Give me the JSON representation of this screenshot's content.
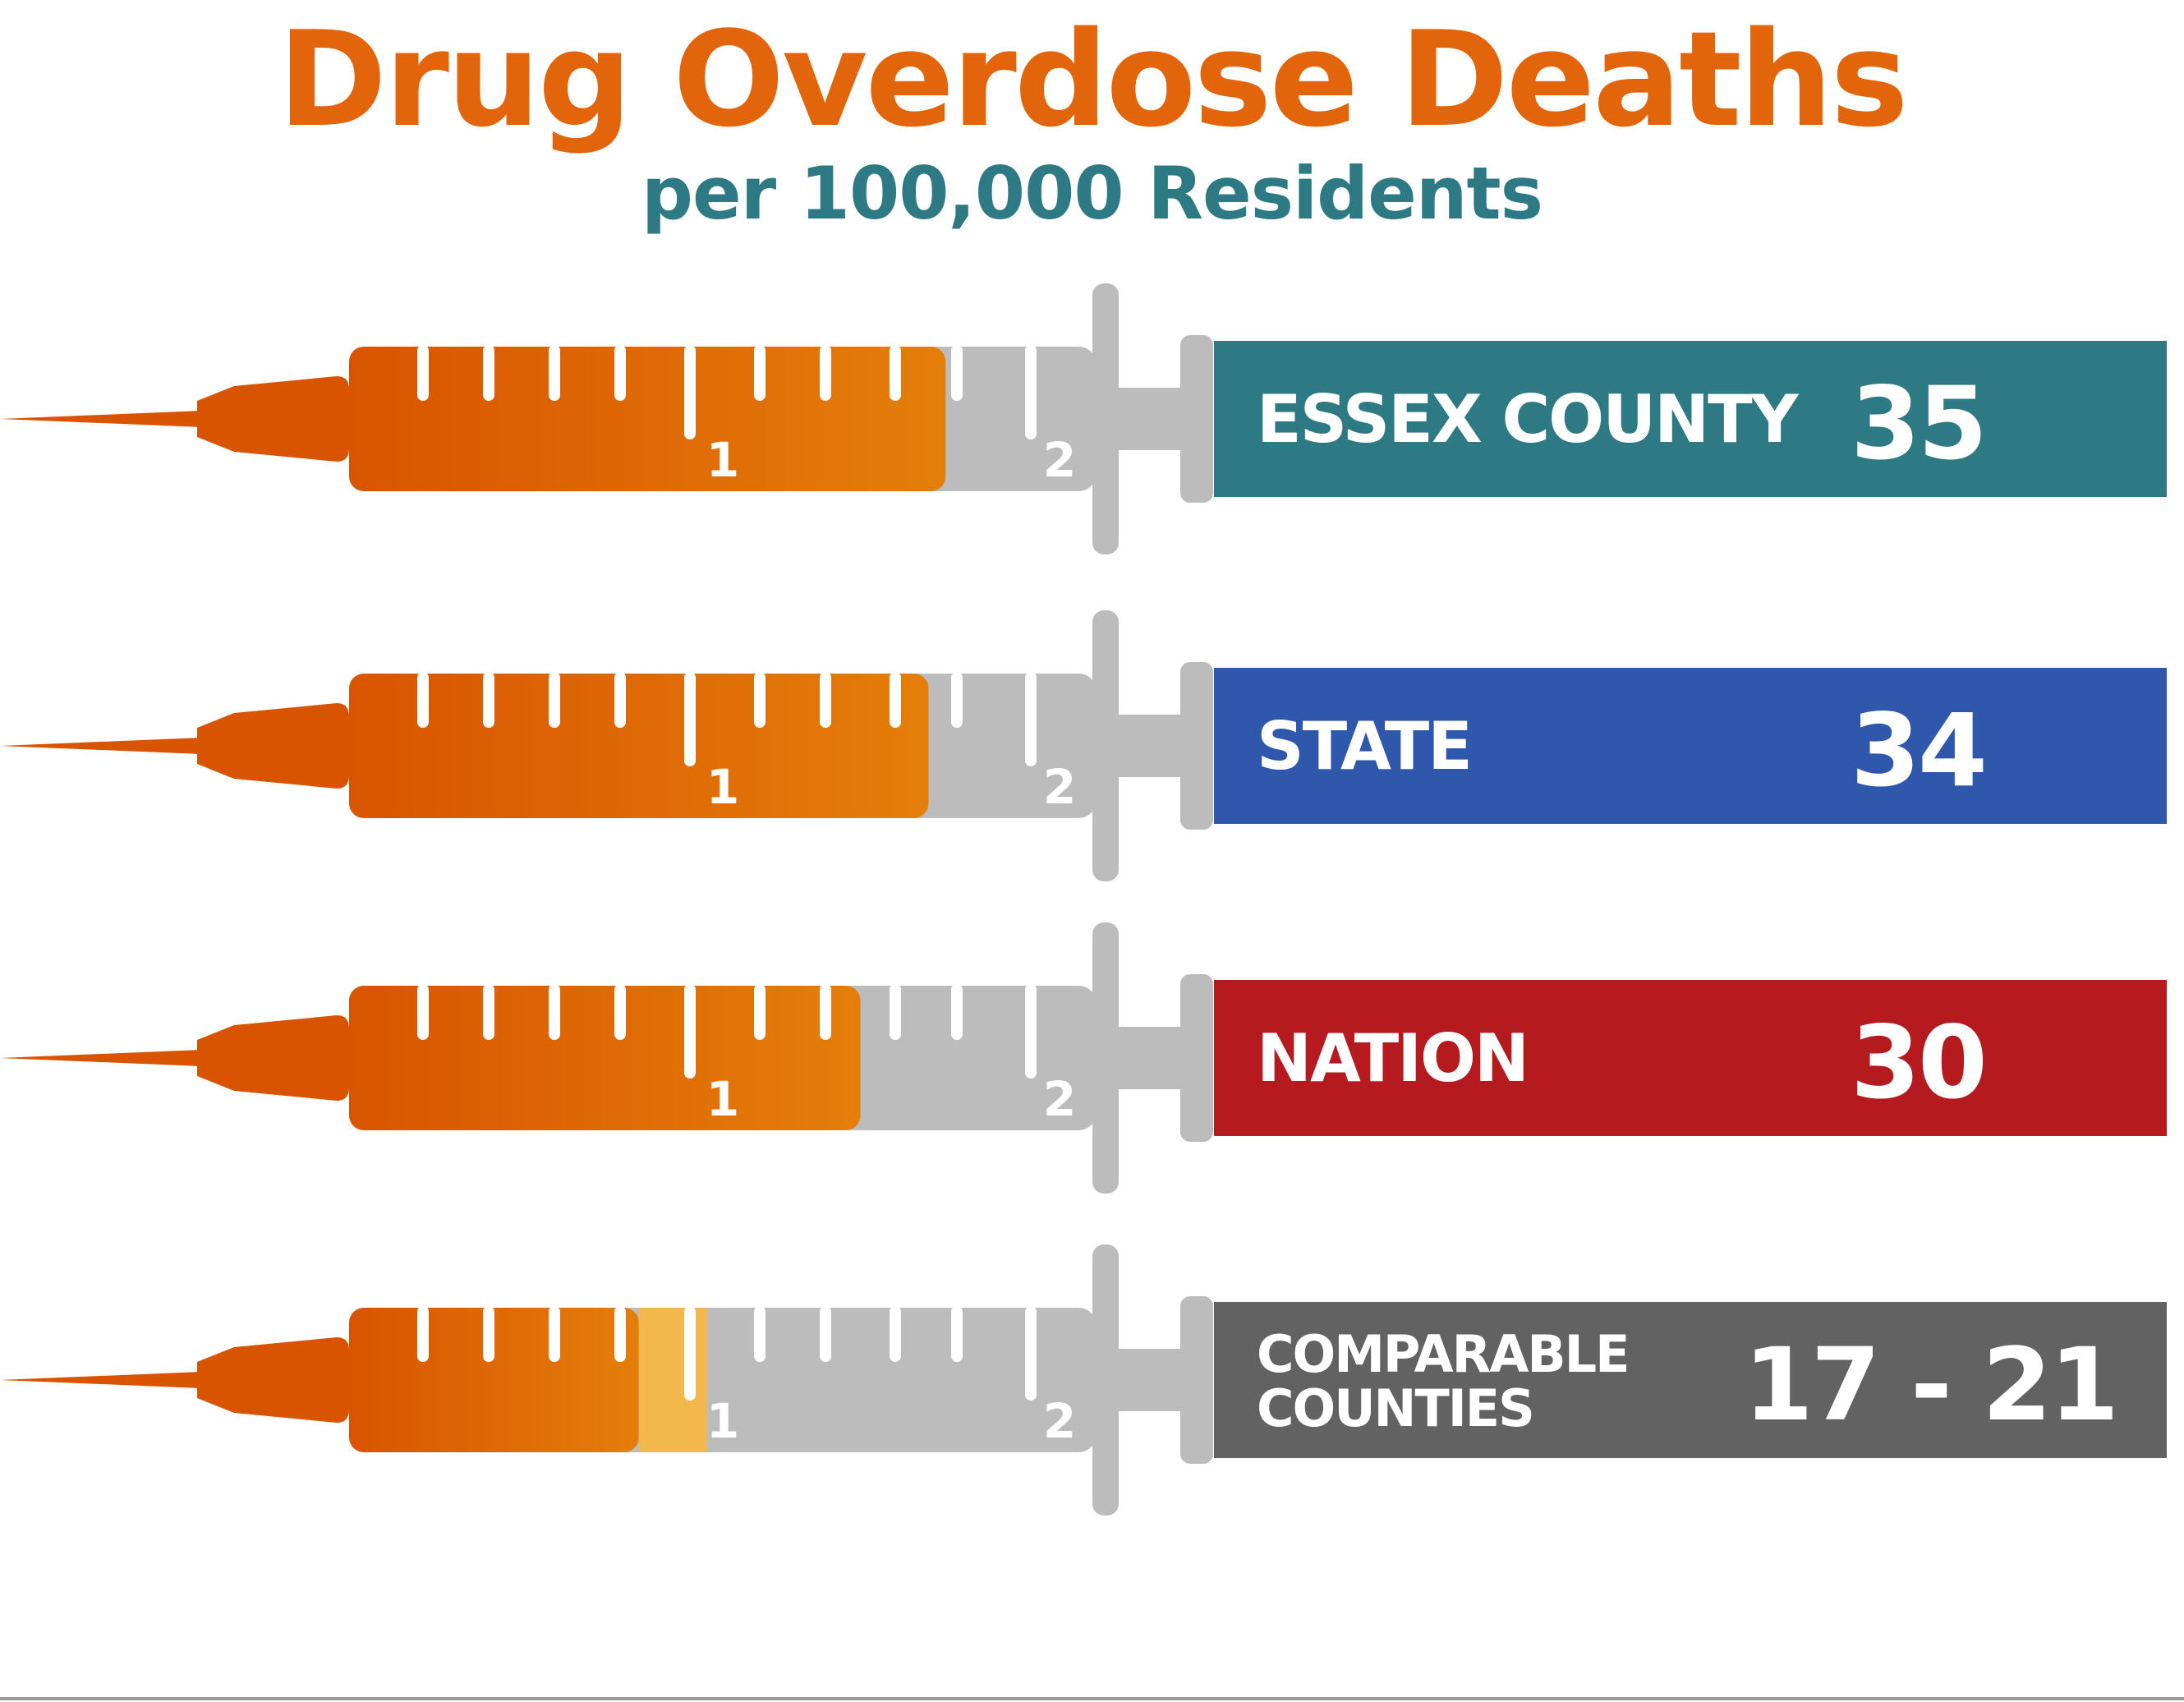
{
  "chart_data": {
    "type": "bar",
    "title": "Drug Overdose Deaths",
    "subtitle": "per 100,000 Residents",
    "scale_labels": [
      "1",
      "2"
    ],
    "fill_color": "#e2650c",
    "range_color": "#f2b84b",
    "barrel_color": "#bcbcbc",
    "series": [
      {
        "name": "ESSEX COUNTY",
        "label_lines": [
          "ESSEX COUNTY"
        ],
        "display": "35",
        "values": [
          35
        ],
        "color": "#2e7a84"
      },
      {
        "name": "STATE",
        "label_lines": [
          "STATE"
        ],
        "display": "34",
        "values": [
          34
        ],
        "color": "#2f58ac"
      },
      {
        "name": "NATION",
        "label_lines": [
          "NATION"
        ],
        "display": "30",
        "values": [
          30
        ],
        "color": "#b51a1e"
      },
      {
        "name": "COMPARABLE COUNTIES",
        "label_lines": [
          "COMPARABLE",
          "COUNTIES"
        ],
        "display": "17 - 21",
        "values": [
          17,
          21
        ],
        "color": "#626262"
      }
    ]
  }
}
